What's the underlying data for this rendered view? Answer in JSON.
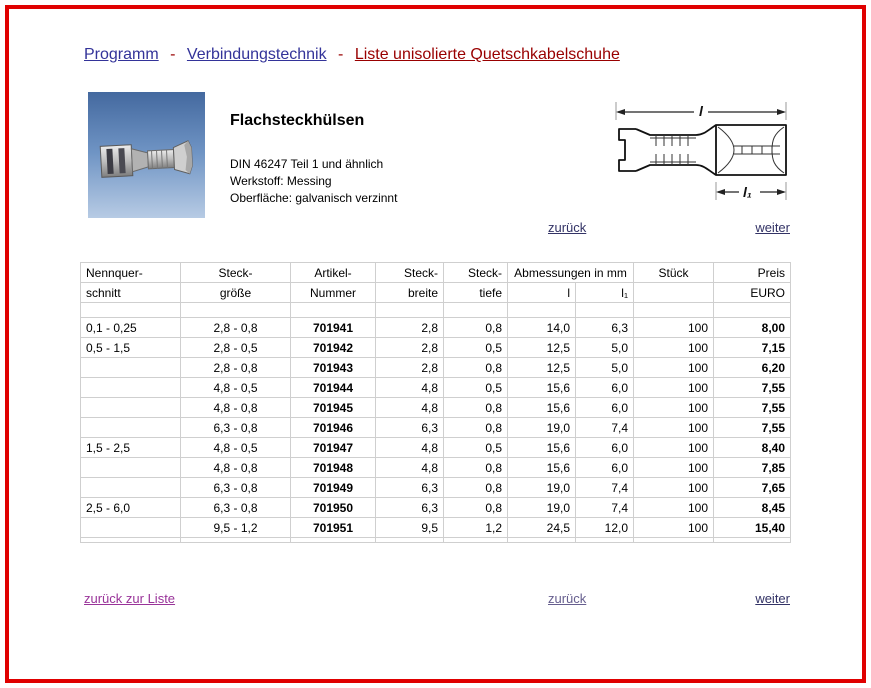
{
  "breadcrumb": {
    "separator": "-",
    "items": [
      {
        "label": "Programm"
      },
      {
        "label": "Verbindungstechnik"
      },
      {
        "label": "Liste unisolierte Quetschkabelschuhe"
      }
    ]
  },
  "product": {
    "title": "Flachsteckhülsen",
    "lines": [
      "DIN 46247 Teil 1 und ähnlich",
      "Werkstoff: Messing",
      "Oberfläche: galvanisch verzinnt"
    ]
  },
  "drawing": {
    "label_l": "l",
    "label_l1": "l₁"
  },
  "nav": {
    "top": {
      "back": "zurück",
      "next": "weiter"
    },
    "bottom": {
      "back_to_list": "zurück zur Liste",
      "back": "zurück",
      "next": "weiter"
    }
  },
  "table": {
    "header_row1": [
      {
        "label": "Nennquer-"
      },
      {
        "label": "Steck-"
      },
      {
        "label": "Artikel-"
      },
      {
        "label": "Steck-"
      },
      {
        "label": "Steck-"
      },
      {
        "label": "Abmessungen in mm",
        "colspan": 2
      },
      {
        "label": "Stück"
      },
      {
        "label": "Preis"
      }
    ],
    "header_row2": [
      "schnitt",
      "größe",
      "Nummer",
      "breite",
      "tiefe",
      "l",
      "l₁",
      "",
      "EURO"
    ],
    "rows": [
      [
        "0,1 - 0,25",
        "2,8 - 0,8",
        "701941",
        "2,8",
        "0,8",
        "14,0",
        "6,3",
        "100",
        "8,00"
      ],
      [
        "0,5 - 1,5",
        "2,8 - 0,5",
        "701942",
        "2,8",
        "0,5",
        "12,5",
        "5,0",
        "100",
        "7,15"
      ],
      [
        "",
        "2,8 - 0,8",
        "701943",
        "2,8",
        "0,8",
        "12,5",
        "5,0",
        "100",
        "6,20"
      ],
      [
        "",
        "4,8 - 0,5",
        "701944",
        "4,8",
        "0,5",
        "15,6",
        "6,0",
        "100",
        "7,55"
      ],
      [
        "",
        "4,8 - 0,8",
        "701945",
        "4,8",
        "0,8",
        "15,6",
        "6,0",
        "100",
        "7,55"
      ],
      [
        "",
        "6,3 - 0,8",
        "701946",
        "6,3",
        "0,8",
        "19,0",
        "7,4",
        "100",
        "7,55"
      ],
      [
        "1,5 - 2,5",
        "4,8 - 0,5",
        "701947",
        "4,8",
        "0,5",
        "15,6",
        "6,0",
        "100",
        "8,40"
      ],
      [
        "",
        "4,8 - 0,8",
        "701948",
        "4,8",
        "0,8",
        "15,6",
        "6,0",
        "100",
        "7,85"
      ],
      [
        "",
        "6,3 - 0,8",
        "701949",
        "6,3",
        "0,8",
        "19,0",
        "7,4",
        "100",
        "7,65"
      ],
      [
        "2,5 - 6,0",
        "6,3 - 0,8",
        "701950",
        "6,3",
        "0,8",
        "19,0",
        "7,4",
        "100",
        "8,45"
      ],
      [
        "",
        "9,5 - 1,2",
        "701951",
        "9,5",
        "1,2",
        "24,5",
        "12,0",
        "100",
        "15,40"
      ]
    ]
  },
  "colors": {
    "page_border": "#e00000",
    "breadcrumb_link": "#333399",
    "breadcrumb_active": "#990000",
    "nav_link": "#333366",
    "visited_link": "#993399",
    "grid_line": "#cfcfcf"
  }
}
